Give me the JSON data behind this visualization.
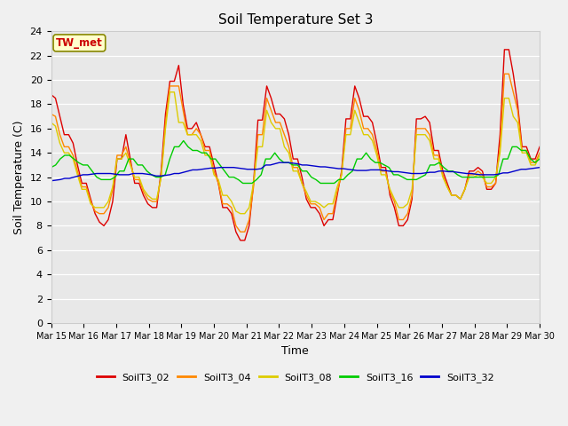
{
  "title": "Soil Temperature Set 3",
  "xlabel": "Time",
  "ylabel": "Soil Temperature (C)",
  "ylim": [
    0,
    24
  ],
  "yticks": [
    0,
    2,
    4,
    6,
    8,
    10,
    12,
    14,
    16,
    18,
    20,
    22,
    24
  ],
  "x_labels": [
    "Mar 15",
    "Mar 16",
    "Mar 17",
    "Mar 18",
    "Mar 19",
    "Mar 20",
    "Mar 21",
    "Mar 22",
    "Mar 23",
    "Mar 24",
    "Mar 25",
    "Mar 26",
    "Mar 27",
    "Mar 28",
    "Mar 29",
    "Mar 30"
  ],
  "annotation": "TW_met",
  "plot_bg": "#e8e8e8",
  "fig_bg": "#f0f0f0",
  "series_colors": {
    "SoilT3_02": "#dd0000",
    "SoilT3_04": "#ff8800",
    "SoilT3_08": "#ddcc00",
    "SoilT3_16": "#00cc00",
    "SoilT3_32": "#0000cc"
  },
  "SoilT3_02": [
    18.8,
    18.5,
    17.0,
    15.5,
    15.5,
    14.8,
    13.0,
    11.5,
    11.5,
    10.2,
    9.0,
    8.3,
    8.0,
    8.5,
    10.0,
    13.5,
    13.5,
    15.5,
    13.5,
    11.5,
    11.5,
    10.5,
    9.8,
    9.5,
    9.5,
    12.5,
    17.2,
    19.9,
    19.9,
    21.2,
    18.0,
    16.0,
    16.0,
    16.5,
    15.5,
    14.5,
    14.5,
    13.0,
    11.5,
    9.5,
    9.5,
    9.0,
    7.5,
    6.8,
    6.8,
    8.0,
    11.5,
    16.7,
    16.7,
    19.5,
    18.5,
    17.2,
    17.2,
    16.8,
    15.5,
    13.5,
    13.5,
    12.0,
    10.2,
    9.5,
    9.5,
    9.0,
    8.0,
    8.5,
    8.5,
    10.5,
    12.5,
    16.8,
    16.8,
    19.5,
    18.5,
    17.0,
    17.0,
    16.5,
    14.8,
    12.8,
    12.8,
    10.5,
    9.5,
    8.0,
    8.0,
    8.5,
    10.2,
    16.8,
    16.8,
    17.0,
    16.5,
    14.2,
    14.2,
    12.5,
    11.5,
    10.5,
    10.5,
    10.2,
    11.0,
    12.5,
    12.5,
    12.8,
    12.5,
    11.0,
    11.0,
    11.5,
    15.5,
    22.5,
    22.5,
    20.5,
    18.0,
    14.5,
    14.5,
    13.5,
    13.5,
    14.5
  ],
  "SoilT3_04": [
    17.2,
    17.0,
    15.5,
    14.5,
    14.5,
    13.8,
    12.5,
    11.2,
    11.2,
    10.0,
    9.2,
    9.0,
    9.0,
    9.5,
    11.0,
    13.8,
    13.8,
    14.5,
    13.2,
    11.8,
    11.8,
    10.8,
    10.2,
    10.0,
    10.0,
    12.0,
    16.5,
    19.5,
    19.5,
    19.5,
    17.5,
    15.5,
    15.5,
    16.0,
    15.5,
    14.2,
    14.2,
    12.5,
    11.5,
    9.8,
    9.8,
    9.5,
    8.0,
    7.5,
    7.5,
    8.5,
    11.2,
    15.5,
    15.5,
    18.5,
    17.5,
    16.5,
    16.5,
    15.5,
    14.5,
    12.8,
    12.8,
    11.5,
    10.5,
    9.8,
    9.8,
    9.5,
    8.5,
    9.0,
    9.0,
    10.8,
    12.2,
    16.0,
    16.0,
    18.5,
    17.5,
    16.0,
    16.0,
    15.5,
    14.2,
    12.5,
    12.5,
    10.8,
    10.0,
    8.5,
    8.5,
    9.0,
    10.5,
    16.0,
    16.0,
    16.0,
    15.5,
    13.8,
    13.8,
    12.2,
    11.2,
    10.5,
    10.5,
    10.2,
    11.0,
    12.2,
    12.2,
    12.5,
    12.2,
    11.2,
    11.2,
    11.5,
    14.5,
    20.5,
    20.5,
    19.0,
    17.5,
    14.2,
    14.2,
    13.2,
    13.2,
    14.0
  ],
  "SoilT3_08": [
    16.5,
    16.2,
    14.8,
    14.0,
    14.0,
    13.5,
    12.2,
    11.0,
    11.0,
    9.8,
    9.5,
    9.5,
    9.5,
    10.0,
    11.2,
    13.5,
    13.5,
    14.0,
    13.0,
    12.0,
    12.0,
    11.0,
    10.5,
    10.2,
    10.2,
    12.0,
    16.0,
    19.0,
    19.0,
    16.5,
    16.5,
    15.5,
    15.5,
    15.5,
    15.0,
    13.8,
    13.8,
    12.2,
    11.8,
    10.5,
    10.5,
    10.0,
    9.2,
    9.0,
    9.0,
    9.5,
    11.5,
    14.5,
    14.5,
    17.5,
    16.5,
    16.0,
    16.0,
    14.5,
    14.0,
    12.5,
    12.5,
    11.5,
    10.8,
    10.0,
    10.0,
    9.8,
    9.5,
    9.8,
    9.8,
    11.2,
    12.2,
    15.5,
    15.5,
    17.5,
    16.5,
    15.5,
    15.5,
    15.0,
    13.8,
    12.2,
    12.2,
    11.0,
    10.2,
    9.5,
    9.5,
    9.8,
    11.0,
    15.5,
    15.5,
    15.5,
    15.0,
    13.5,
    13.5,
    12.0,
    11.2,
    10.5,
    10.5,
    10.2,
    11.0,
    12.0,
    12.0,
    12.2,
    12.0,
    11.5,
    11.5,
    12.0,
    14.0,
    18.5,
    18.5,
    17.0,
    16.5,
    14.0,
    14.0,
    13.0,
    13.0,
    13.8
  ],
  "SoilT3_16": [
    12.8,
    13.0,
    13.5,
    13.8,
    13.8,
    13.5,
    13.2,
    13.0,
    13.0,
    12.5,
    12.0,
    11.8,
    11.8,
    11.8,
    12.0,
    12.5,
    12.5,
    13.5,
    13.5,
    13.0,
    13.0,
    12.5,
    12.2,
    12.0,
    12.0,
    12.2,
    13.5,
    14.5,
    14.5,
    15.0,
    14.5,
    14.2,
    14.2,
    14.0,
    14.0,
    13.5,
    13.5,
    13.0,
    12.5,
    12.0,
    12.0,
    11.8,
    11.5,
    11.5,
    11.5,
    11.8,
    12.2,
    13.5,
    13.5,
    14.0,
    13.5,
    13.2,
    13.2,
    13.0,
    13.0,
    12.5,
    12.5,
    12.0,
    11.8,
    11.5,
    11.5,
    11.5,
    11.5,
    11.8,
    11.8,
    12.2,
    12.5,
    13.5,
    13.5,
    14.0,
    13.5,
    13.2,
    13.2,
    13.0,
    12.8,
    12.2,
    12.2,
    12.0,
    11.8,
    11.8,
    11.8,
    12.0,
    12.2,
    13.0,
    13.0,
    13.2,
    12.8,
    12.5,
    12.5,
    12.2,
    12.0,
    12.0,
    12.0,
    12.0,
    12.0,
    12.0,
    12.0,
    12.0,
    12.2,
    13.5,
    13.5,
    14.5,
    14.5,
    14.2,
    14.2,
    13.5,
    13.2,
    13.5
  ],
  "SoilT3_32": [
    11.7,
    11.75,
    11.8,
    11.9,
    11.9,
    12.0,
    12.1,
    12.2,
    12.2,
    12.25,
    12.3,
    12.3,
    12.3,
    12.3,
    12.25,
    12.2,
    12.2,
    12.2,
    12.3,
    12.3,
    12.3,
    12.25,
    12.2,
    12.1,
    12.1,
    12.15,
    12.2,
    12.3,
    12.3,
    12.4,
    12.5,
    12.6,
    12.6,
    12.65,
    12.7,
    12.75,
    12.75,
    12.8,
    12.8,
    12.8,
    12.8,
    12.75,
    12.7,
    12.65,
    12.65,
    12.65,
    12.7,
    13.0,
    13.0,
    13.1,
    13.2,
    13.2,
    13.2,
    13.15,
    13.1,
    13.0,
    13.0,
    12.95,
    12.9,
    12.85,
    12.85,
    12.8,
    12.75,
    12.7,
    12.7,
    12.65,
    12.6,
    12.55,
    12.55,
    12.55,
    12.6,
    12.6,
    12.6,
    12.55,
    12.5,
    12.45,
    12.45,
    12.4,
    12.35,
    12.3,
    12.3,
    12.3,
    12.35,
    12.4,
    12.4,
    12.5,
    12.5,
    12.45,
    12.45,
    12.4,
    12.35,
    12.3,
    12.3,
    12.25,
    12.2,
    12.2,
    12.2,
    12.2,
    12.25,
    12.35,
    12.35,
    12.45,
    12.55,
    12.65,
    12.65,
    12.7,
    12.75,
    12.8
  ]
}
